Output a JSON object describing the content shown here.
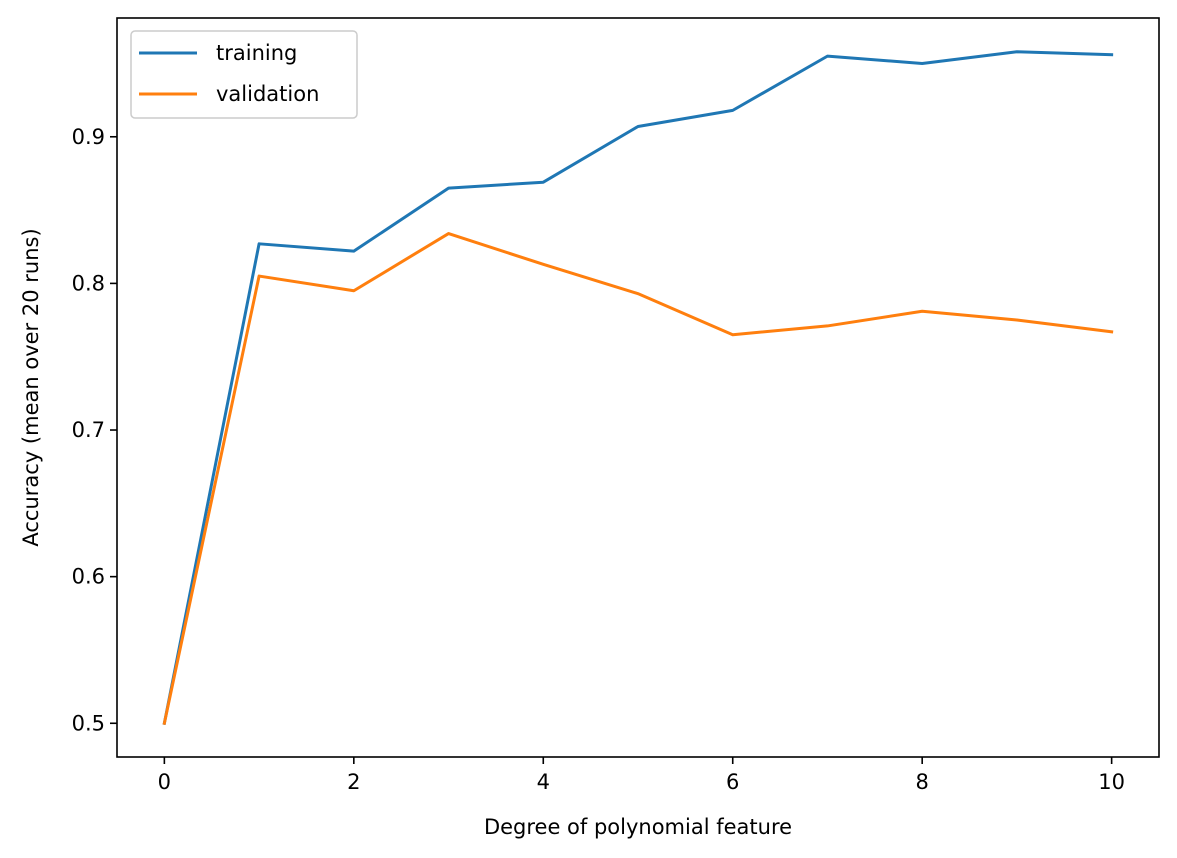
{
  "chart_data": {
    "type": "line",
    "title": "",
    "xlabel": "Degree of polynomial feature",
    "ylabel": "Accuracy (mean over 20 runs)",
    "xlim": [
      -0.5,
      10.5
    ],
    "ylim": [
      0.477,
      0.981
    ],
    "xticks": [
      0,
      2,
      4,
      6,
      8,
      10
    ],
    "xtick_labels": [
      "0",
      "2",
      "4",
      "6",
      "8",
      "10"
    ],
    "yticks": [
      0.5,
      0.6,
      0.7,
      0.8,
      0.9
    ],
    "ytick_labels": [
      "0.5",
      "0.6",
      "0.7",
      "0.8",
      "0.9"
    ],
    "grid": false,
    "legend_position": "top-left",
    "x": [
      0,
      1,
      2,
      3,
      4,
      5,
      6,
      7,
      8,
      9,
      10
    ],
    "series": [
      {
        "name": "training",
        "color": "#1f77b4",
        "values": [
          0.5,
          0.827,
          0.822,
          0.865,
          0.869,
          0.907,
          0.918,
          0.955,
          0.95,
          0.958,
          0.956
        ]
      },
      {
        "name": "validation",
        "color": "#ff7f0e",
        "values": [
          0.5,
          0.805,
          0.795,
          0.834,
          0.813,
          0.793,
          0.765,
          0.771,
          0.781,
          0.775,
          0.767
        ]
      }
    ]
  }
}
